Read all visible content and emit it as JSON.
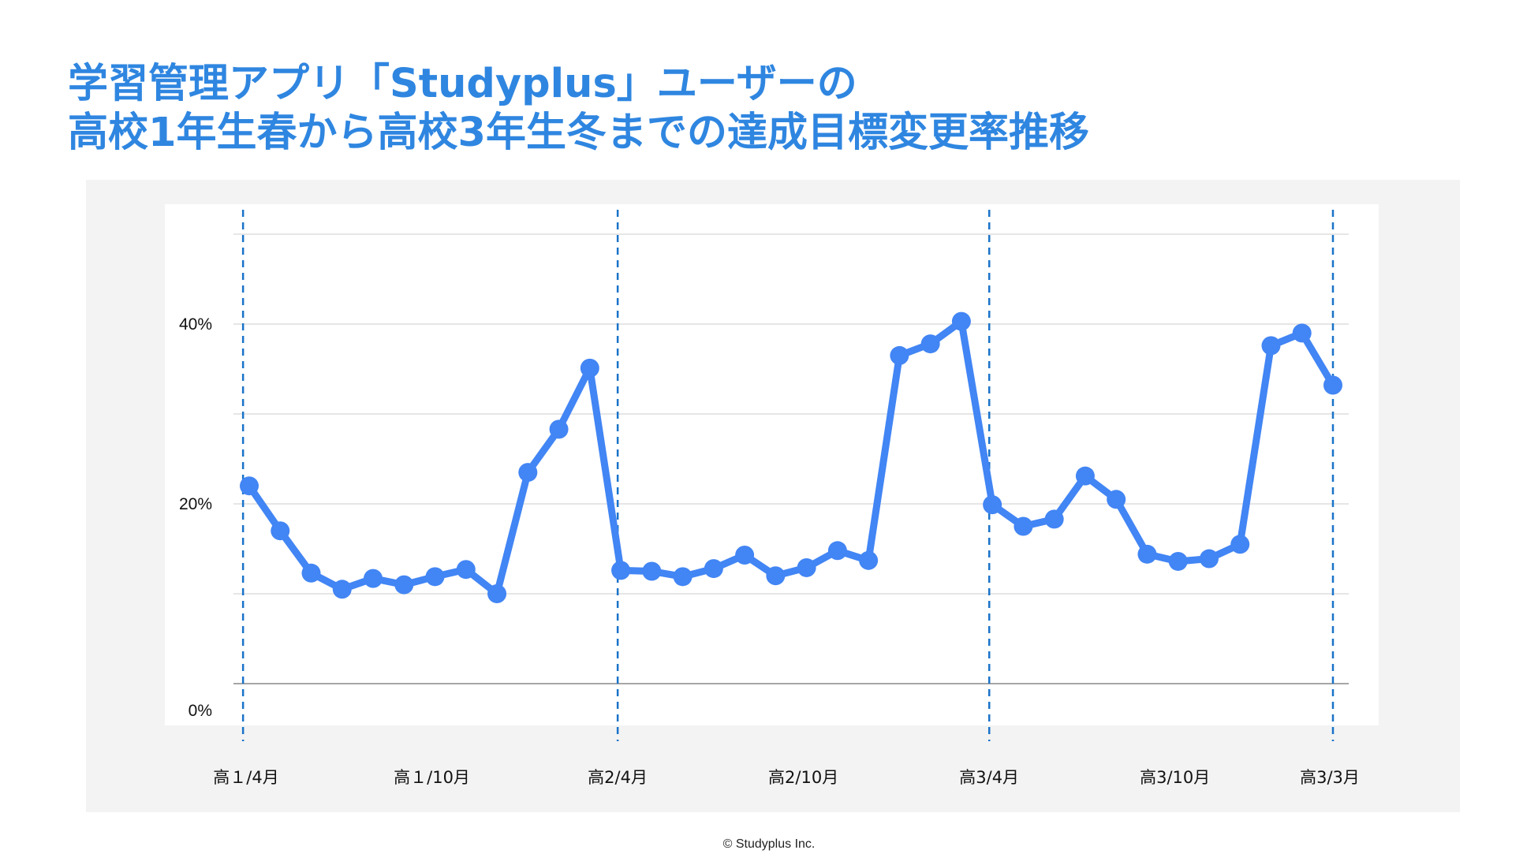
{
  "header": {
    "title_line1": "学習管理アプリ「Studyplus」ユーザーの",
    "title_line2": "高校1年生春から高校3年生冬までの達成目標変更率推移"
  },
  "footer": {
    "copyright": "© Studyplus Inc."
  },
  "colors": {
    "title": "#2f86e0",
    "series": "#4285f4",
    "divider": "#1a73c8",
    "panel": "#f3f3f3",
    "grid": "#dddddd",
    "baseline": "#888888"
  },
  "chart_data": {
    "type": "line",
    "title": "",
    "xlabel": "",
    "ylabel": "",
    "ylim": [
      -3,
      43
    ],
    "y_tick_labels": [
      {
        "value": -3,
        "label": "0%"
      },
      {
        "value": 20,
        "label": "20%"
      },
      {
        "value": 40,
        "label": "40%"
      }
    ],
    "gridlines": [
      10,
      20,
      30,
      40,
      50
    ],
    "baseline": 0,
    "x_tick_labels": [
      {
        "index": 0,
        "label": "高１/4月"
      },
      {
        "index": 6,
        "label": "高１/10月"
      },
      {
        "index": 12,
        "label": "高2/4月"
      },
      {
        "index": 18,
        "label": "高2/10月"
      },
      {
        "index": 24,
        "label": "高3/4月"
      },
      {
        "index": 30,
        "label": "高3/10月"
      },
      {
        "index": 35,
        "label": "高3/3月"
      }
    ],
    "dividers": [
      -0.2,
      11.9,
      23.9,
      35
    ]
  },
  "series_values": [
    22,
    17,
    12.3,
    10.5,
    11.7,
    11,
    11.9,
    12.7,
    10,
    23.5,
    28.3,
    35.1,
    12.6,
    12.5,
    11.9,
    12.8,
    14.3,
    12,
    12.9,
    14.8,
    13.7,
    36.5,
    37.8,
    40.3,
    19.9,
    17.5,
    18.3,
    23.1,
    20.5,
    14.4,
    13.6,
    13.9,
    15.5,
    37.6,
    39,
    33.2
  ]
}
